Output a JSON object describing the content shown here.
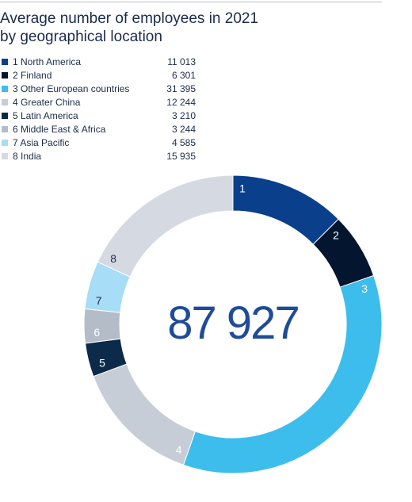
{
  "title_line1": "Average number of employees in 2021",
  "title_line2": "by geographical location",
  "chart_data": {
    "type": "pie",
    "style": "donut",
    "total_label": "87 927",
    "legend_position": "top-left",
    "categories": [
      {
        "number": "1",
        "name": "North America",
        "value": 11013,
        "display": "11 013",
        "color": "#0a3f8c"
      },
      {
        "number": "2",
        "name": "Finland",
        "value": 6301,
        "display": "6 301",
        "color": "#03152f"
      },
      {
        "number": "3",
        "name": "Other European countries",
        "value": 31395,
        "display": "31 395",
        "color": "#3cbdec"
      },
      {
        "number": "4",
        "name": "Greater China",
        "value": 12244,
        "display": "12 244",
        "color": "#c7cdd7"
      },
      {
        "number": "5",
        "name": "Latin America",
        "value": 3210,
        "display": "3 210",
        "color": "#0c2b4a"
      },
      {
        "number": "6",
        "name": "Middle East & Africa",
        "value": 3244,
        "display": "3 244",
        "color": "#b4bcc7"
      },
      {
        "number": "7",
        "name": "Asia Pacific",
        "value": 4585,
        "display": "4 585",
        "color": "#a7ddf6"
      },
      {
        "number": "8",
        "name": "India",
        "value": 15935,
        "display": "15 935",
        "color": "#d5dae2"
      }
    ]
  }
}
